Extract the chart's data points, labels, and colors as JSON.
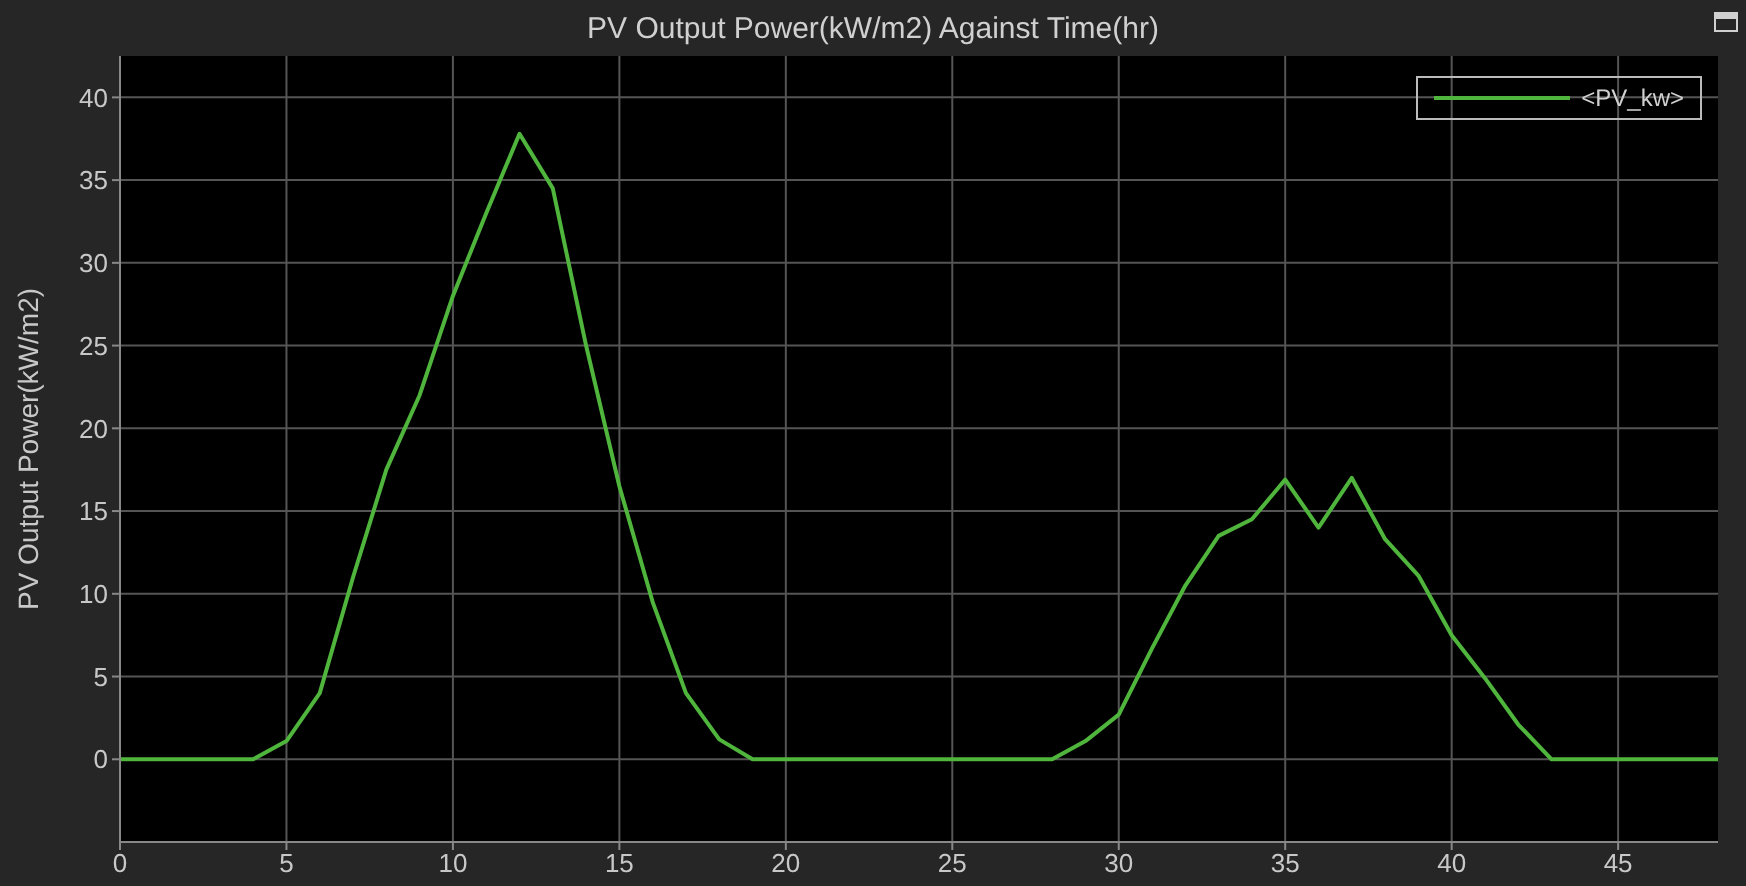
{
  "chart_data": {
    "type": "line",
    "title": "PV Output Power(kW/m2) Against Time(hr)",
    "ylabel": "PV Output Power(kW/m2)",
    "x": [
      0,
      1,
      2,
      3,
      4,
      5,
      6,
      7,
      8,
      9,
      10,
      11,
      12,
      13,
      14,
      15,
      16,
      17,
      18,
      19,
      20,
      21,
      22,
      23,
      24,
      25,
      26,
      27,
      28,
      29,
      30,
      31,
      32,
      33,
      34,
      35,
      36,
      37,
      38,
      39,
      40,
      41,
      42,
      43,
      44,
      45,
      46,
      47,
      48
    ],
    "series": [
      {
        "name": "<PV_kw>",
        "color": "#4fb53c",
        "values": [
          0,
          0,
          0,
          0,
          0,
          1.1,
          4,
          11,
          17.5,
          22,
          28,
          33,
          37.8,
          34.5,
          25,
          16.5,
          9.5,
          4,
          1.2,
          0,
          0,
          0,
          0,
          0,
          0,
          0,
          0,
          0,
          0,
          1.1,
          2.7,
          6.7,
          10.5,
          13.5,
          14.5,
          16.9,
          14,
          17,
          13.3,
          11.1,
          7.5,
          4.9,
          2.1,
          0,
          0,
          0,
          0,
          0,
          0
        ]
      }
    ],
    "xlim": [
      0,
      48
    ],
    "xticks": [
      0,
      5,
      10,
      15,
      20,
      25,
      30,
      35,
      40,
      45
    ],
    "ylim": [
      -5,
      42.5
    ],
    "yticks": [
      0,
      5,
      10,
      15,
      20,
      25,
      30,
      35,
      40
    ],
    "grid": true,
    "legend": "top right",
    "marker": "none",
    "line_style": "solid"
  }
}
